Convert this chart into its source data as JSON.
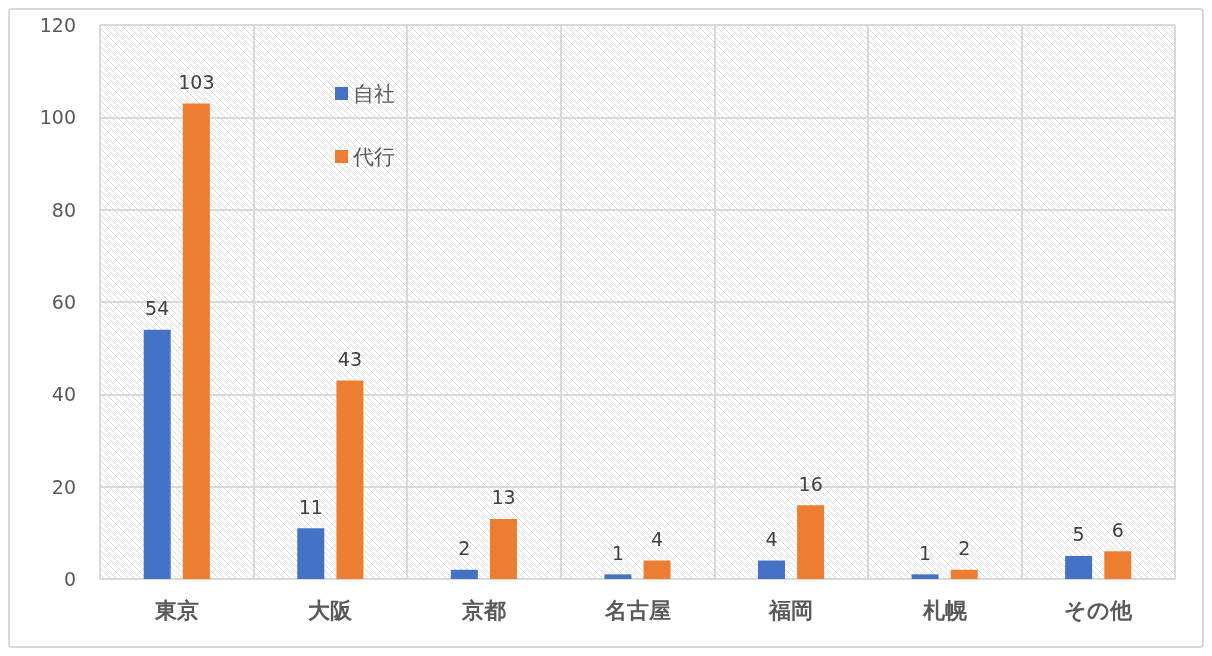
{
  "chart_data": {
    "type": "bar",
    "categories": [
      "東京",
      "大阪",
      "京都",
      "名古屋",
      "福岡",
      "札幌",
      "その他"
    ],
    "series": [
      {
        "name": "自社",
        "color": "#4472c4",
        "values": [
          54,
          11,
          2,
          1,
          4,
          1,
          5
        ]
      },
      {
        "name": "代行",
        "color": "#ed7d31",
        "values": [
          103,
          43,
          13,
          4,
          16,
          2,
          6
        ]
      }
    ],
    "ylim": [
      0,
      120
    ],
    "yticks": [
      0,
      20,
      40,
      60,
      80,
      100,
      120
    ],
    "grid": true,
    "legend": "top left",
    "data_labels": true
  }
}
